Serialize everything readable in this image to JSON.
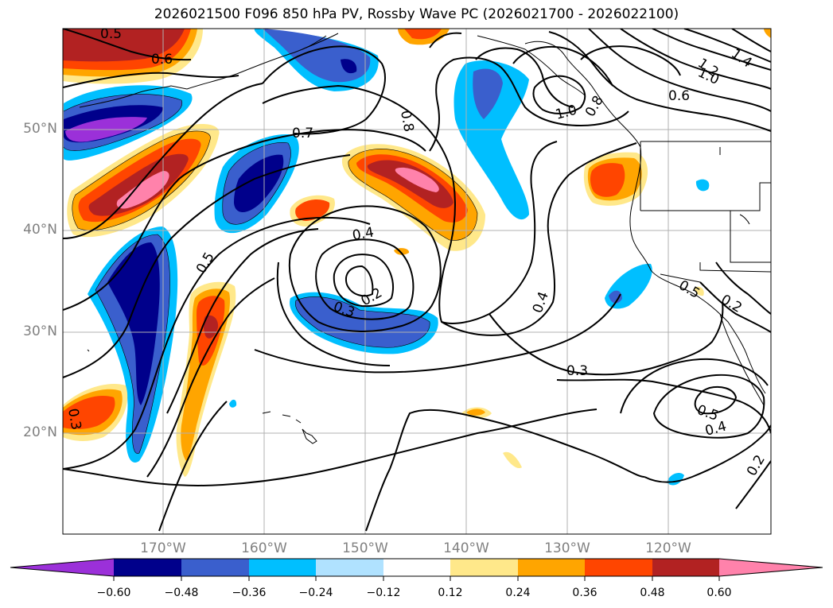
{
  "title": "2026021500 F096 850 hPa PV, Rossby Wave PC (2026021700 - 2026022100)",
  "lat_labels": [
    "50°N",
    "40°N",
    "30°N",
    "20°N"
  ],
  "lon_labels": [
    "170°W",
    "160°W",
    "150°W",
    "140°W",
    "130°W",
    "120°W"
  ],
  "colorbar": {
    "ticks": [
      "−0.60",
      "−0.48",
      "−0.36",
      "−0.24",
      "−0.12",
      "0.12",
      "0.24",
      "0.36",
      "0.48",
      "0.60"
    ],
    "colors": [
      "#9b30d9",
      "#00008b",
      "#3a5fcd",
      "#00bfff",
      "#b0e2ff",
      "#ffffff",
      "#ffe88a",
      "#ffa500",
      "#ff4500",
      "#b22222",
      "#ff82ab"
    ]
  },
  "contour_labels": [
    "0.5",
    "0.6",
    "0.8",
    "0.7",
    "1.0",
    "0.8",
    "1.2",
    "1.4",
    "1.0",
    "0.6",
    "0.4",
    "0.5",
    "0.2",
    "0.3",
    "0.4",
    "0.3",
    "0.3",
    "0.5",
    "0.4",
    "0.2",
    "0.5",
    "0.2"
  ]
}
